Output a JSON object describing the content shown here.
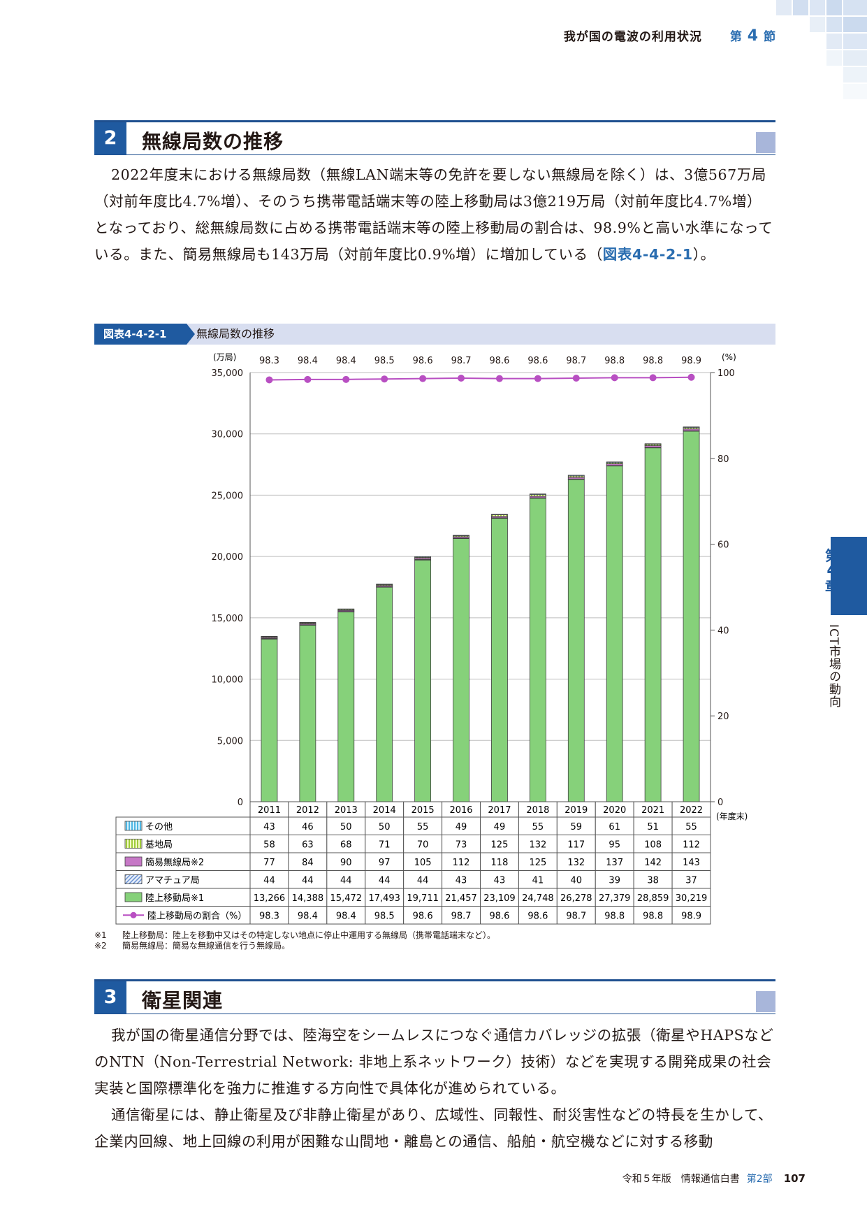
{
  "running_header": {
    "title": "我が国の電波の利用状況",
    "section_prefix": "第",
    "section_num": "4",
    "section_suffix": "節"
  },
  "section2": {
    "number": "2",
    "title": "無線局数の推移",
    "body": "2022年度末における無線局数（無線LAN端末等の免許を要しない無線局を除く）は、3億567万局（対前年度比4.7%増）、そのうち携帯電話端末等の陸上移動局は3億219万局（対前年度比4.7%増）となっており、総無線局数に占める携帯電話端末等の陸上移動局の割合は、98.9%と高い水準になっている。また、簡易無線局も143万局（対前年度比0.9%増）に増加している（",
    "ref": "図表4-4-2-1",
    "body_end": "）。"
  },
  "figure": {
    "label": "図表4-4-2-1",
    "title": "無線局数の推移"
  },
  "chart_data": {
    "type": "bar",
    "stacked": true,
    "left_unit": "(万局)",
    "right_unit": "(%)",
    "x_unit": "(年度末)",
    "ylim": [
      0,
      35000
    ],
    "y_ticks": [
      "0",
      "5,000",
      "10,000",
      "15,000",
      "20,000",
      "25,000",
      "30,000",
      "35,000"
    ],
    "y2lim": [
      0,
      100
    ],
    "y2_ticks": [
      "0",
      "20",
      "40",
      "60",
      "80",
      "100"
    ],
    "categories": [
      "2011",
      "2012",
      "2013",
      "2014",
      "2015",
      "2016",
      "2017",
      "2018",
      "2019",
      "2020",
      "2021",
      "2022"
    ],
    "series": [
      {
        "name": "その他",
        "color": "#6ec6e8",
        "pattern": "vstripe-blue",
        "values": [
          43,
          46,
          50,
          50,
          55,
          49,
          49,
          55,
          59,
          61,
          51,
          55
        ],
        "labels": [
          "43",
          "46",
          "50",
          "50",
          "55",
          "49",
          "49",
          "55",
          "59",
          "61",
          "51",
          "55"
        ]
      },
      {
        "name": "基地局",
        "color": "#c5e06a",
        "pattern": "vstripe-yellow",
        "values": [
          58,
          63,
          68,
          71,
          70,
          73,
          125,
          132,
          117,
          95,
          108,
          112
        ],
        "labels": [
          "58",
          "63",
          "68",
          "71",
          "70",
          "73",
          "125",
          "132",
          "117",
          "95",
          "108",
          "112"
        ]
      },
      {
        "name": "簡易無線局※2",
        "color": "#c678c6",
        "pattern": "solid",
        "values": [
          77,
          84,
          90,
          97,
          105,
          112,
          118,
          125,
          132,
          137,
          142,
          143
        ],
        "labels": [
          "77",
          "84",
          "90",
          "97",
          "105",
          "112",
          "118",
          "125",
          "132",
          "137",
          "142",
          "143"
        ]
      },
      {
        "name": "アマチュア局",
        "color": "#9ab8e0",
        "pattern": "diag-blue",
        "values": [
          44,
          44,
          44,
          44,
          44,
          43,
          43,
          41,
          40,
          39,
          38,
          37
        ],
        "labels": [
          "44",
          "44",
          "44",
          "44",
          "44",
          "43",
          "43",
          "41",
          "40",
          "39",
          "38",
          "37"
        ]
      },
      {
        "name": "陸上移動局※1",
        "color": "#86d17a",
        "pattern": "solid",
        "values": [
          13266,
          14388,
          15472,
          17493,
          19711,
          21457,
          23109,
          24748,
          26278,
          27379,
          28859,
          30219
        ],
        "labels": [
          "13,266",
          "14,388",
          "15,472",
          "17,493",
          "19,711",
          "21,457",
          "23,109",
          "24,748",
          "26,278",
          "27,379",
          "28,859",
          "30,219"
        ]
      },
      {
        "name": "陸上移動局の割合（%）",
        "type": "line",
        "axis": "right",
        "color": "#b84fc2",
        "values": [
          98.3,
          98.4,
          98.4,
          98.5,
          98.6,
          98.7,
          98.6,
          98.6,
          98.7,
          98.8,
          98.8,
          98.9
        ],
        "labels": [
          "98.3",
          "98.4",
          "98.4",
          "98.5",
          "98.6",
          "98.7",
          "98.6",
          "98.6",
          "98.7",
          "98.8",
          "98.8",
          "98.9"
        ]
      }
    ]
  },
  "notes": [
    {
      "mark": "※1",
      "text": "陸上移動局：陸上を移動中又はその特定しない地点に停止中運用する無線局（携帯電話端末など）。"
    },
    {
      "mark": "※2",
      "text": "簡易無線局：簡易な無線通信を行う無線局。"
    }
  ],
  "section3": {
    "number": "3",
    "title": "衛星関連",
    "body1": "我が国の衛星通信分野では、陸海空をシームレスにつなぐ通信カバレッジの拡張（衛星やHAPSなどのNTN（Non-Terrestrial Network: 非地上系ネットワーク）技術）などを実現する開発成果の社会実装と国際標準化を強力に推進する方向性で具体化が進められている。",
    "body2": "通信衛星には、静止衛星及び非静止衛星があり、広域性、同報性、耐災害性などの特長を生かして、企業内回線、地上回線の利用が困難な山間地・離島との通信、船舶・航空機などに対する移動"
  },
  "side": {
    "chapter_prefix": "第",
    "chapter_num": "4",
    "chapter_suffix": "章",
    "chapter_title": "ICT市場の動向"
  },
  "footer": {
    "book": "令和５年版　情報通信白書",
    "part": "第2部",
    "page": "107"
  }
}
